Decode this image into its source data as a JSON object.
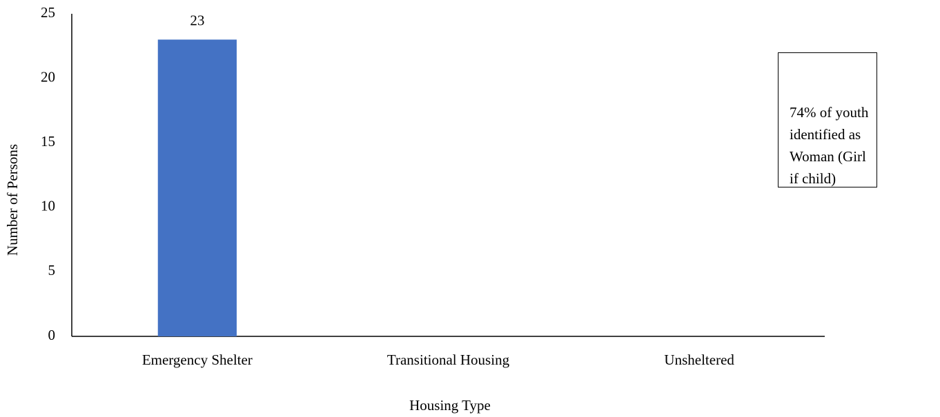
{
  "chart_data": {
    "type": "bar",
    "categories": [
      "Emergency Shelter",
      "Transitional Housing",
      "Unsheltered"
    ],
    "values": [
      23,
      0,
      0
    ],
    "value_labels": [
      "23",
      null,
      null
    ],
    "color": "#4472c4",
    "ylim": [
      0,
      25
    ],
    "yticks": [
      0,
      5,
      10,
      15,
      20,
      25
    ],
    "grid": false,
    "x_label": "Housing Type",
    "y_label": "Number of Persons",
    "annotation": "74% of youth identified as Woman (Girl if child)"
  }
}
